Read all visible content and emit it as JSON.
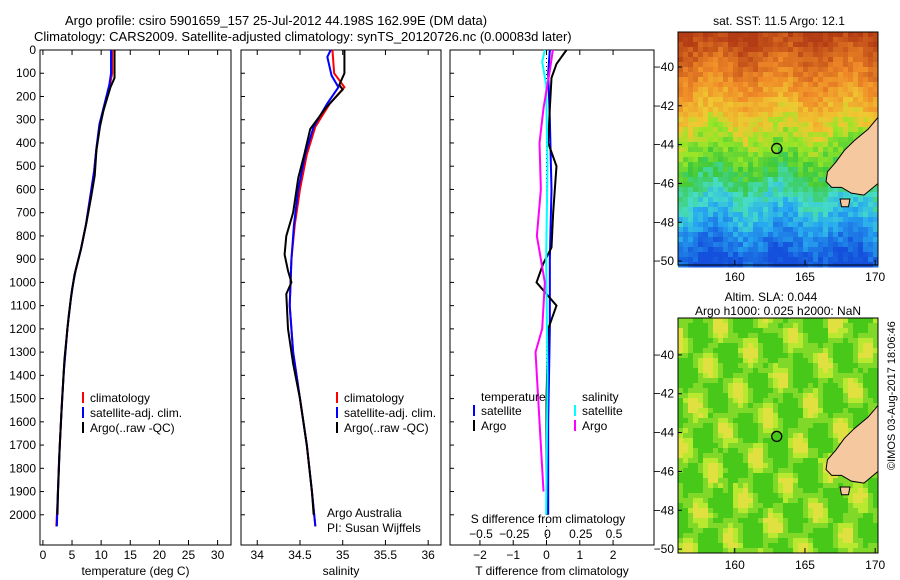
{
  "title_line1": "Argo profile: csiro 5901659_157 25-Jul-2012 44.198S 162.99E (DM data)",
  "title_line2": "Climatology: CARS2009. Satellite-adjusted climatology: synTS_20120726.nc (0.00083d later)",
  "credit": "©IMOS 03-Aug-2017 18:06:46",
  "colors": {
    "climatology": "#ff0000",
    "satellite": "#0000ff",
    "argo": "#000000",
    "s_satellite": "#00ffff",
    "s_argo": "#ff00ff",
    "land": "#f5c89f"
  },
  "chart_data": [
    {
      "type": "line",
      "name": "temperature",
      "xlabel": "temperature (deg C)",
      "ylabel": "",
      "xlim": [
        -0.5,
        32.3
      ],
      "ylim": [
        0,
        2130
      ],
      "xticks": [
        0,
        5,
        10,
        15,
        20,
        25,
        30
      ],
      "yticks": [
        0,
        100,
        200,
        300,
        400,
        500,
        600,
        700,
        800,
        900,
        1000,
        1100,
        1200,
        1300,
        1400,
        1500,
        1600,
        1700,
        1800,
        1900,
        2000
      ],
      "legend": [
        "climatology",
        "satellite-adj. clim.",
        "Argo(..raw -QC)"
      ],
      "series": [
        {
          "name": "climatology",
          "color": "#ff0000",
          "points": [
            [
              11.9,
              0
            ],
            [
              11.9,
              100
            ],
            [
              11.5,
              150
            ],
            [
              10.5,
              250
            ],
            [
              9.8,
              320
            ],
            [
              9.2,
              420
            ],
            [
              8.8,
              520
            ],
            [
              8.2,
              620
            ],
            [
              7.4,
              750
            ],
            [
              6.5,
              860
            ],
            [
              5.4,
              970
            ],
            [
              4.8,
              1070
            ],
            [
              4.2,
              1200
            ],
            [
              3.6,
              1380
            ],
            [
              3.2,
              1550
            ],
            [
              2.8,
              1750
            ],
            [
              2.5,
              1950
            ],
            [
              2.3,
              2050
            ]
          ]
        },
        {
          "name": "satellite-adj. clim.",
          "color": "#0000ff",
          "points": [
            [
              11.7,
              0
            ],
            [
              11.7,
              100
            ],
            [
              11.4,
              150
            ],
            [
              10.4,
              250
            ],
            [
              9.7,
              320
            ],
            [
              9.2,
              420
            ],
            [
              8.8,
              520
            ],
            [
              8.2,
              620
            ],
            [
              7.4,
              750
            ],
            [
              6.5,
              860
            ],
            [
              5.4,
              970
            ],
            [
              4.8,
              1070
            ],
            [
              4.2,
              1200
            ],
            [
              3.6,
              1380
            ],
            [
              3.2,
              1550
            ],
            [
              2.8,
              1750
            ],
            [
              2.5,
              1950
            ],
            [
              2.4,
              2050
            ]
          ]
        },
        {
          "name": "Argo(..raw -QC)",
          "color": "#000000",
          "points": [
            [
              12.3,
              0
            ],
            [
              12.3,
              120
            ],
            [
              11.6,
              160
            ],
            [
              10.4,
              260
            ],
            [
              9.8,
              330
            ],
            [
              9.2,
              430
            ],
            [
              8.9,
              540
            ],
            [
              8.3,
              630
            ],
            [
              7.5,
              740
            ],
            [
              6.6,
              850
            ],
            [
              5.6,
              950
            ],
            [
              5.0,
              1030
            ],
            [
              4.4,
              1150
            ],
            [
              3.7,
              1330
            ],
            [
              3.3,
              1500
            ],
            [
              2.9,
              1700
            ],
            [
              2.6,
              1900
            ],
            [
              2.5,
              2000
            ]
          ]
        }
      ]
    },
    {
      "type": "line",
      "name": "salinity",
      "xlabel": "salinity",
      "ylabel": "",
      "xlim": [
        33.81,
        36.15
      ],
      "ylim": [
        0,
        2130
      ],
      "xticks": [
        34,
        34.5,
        35,
        35.5,
        36
      ],
      "legend": [
        "climatology",
        "satellite-adj. clim.",
        "Argo(..raw -QC)"
      ],
      "annotation": [
        "Argo Australia",
        "PI: Susan Wijffels"
      ],
      "series": [
        {
          "name": "climatology",
          "color": "#ff0000",
          "points": [
            [
              34.88,
              0
            ],
            [
              34.9,
              100
            ],
            [
              35.02,
              160
            ],
            [
              34.85,
              230
            ],
            [
              34.68,
              330
            ],
            [
              34.58,
              450
            ],
            [
              34.5,
              600
            ],
            [
              34.44,
              750
            ],
            [
              34.4,
              900
            ],
            [
              34.38,
              1100
            ],
            [
              34.42,
              1300
            ],
            [
              34.5,
              1500
            ],
            [
              34.58,
              1700
            ],
            [
              34.64,
              1900
            ],
            [
              34.68,
              2050
            ]
          ]
        },
        {
          "name": "satellite-adj. clim.",
          "color": "#0000ff",
          "points": [
            [
              34.86,
              0
            ],
            [
              34.82,
              30
            ],
            [
              34.87,
              110
            ],
            [
              34.95,
              160
            ],
            [
              34.82,
              230
            ],
            [
              34.66,
              330
            ],
            [
              34.56,
              450
            ],
            [
              34.48,
              600
            ],
            [
              34.43,
              750
            ],
            [
              34.4,
              900
            ],
            [
              34.38,
              1100
            ],
            [
              34.42,
              1300
            ],
            [
              34.5,
              1500
            ],
            [
              34.58,
              1700
            ],
            [
              34.64,
              1900
            ],
            [
              34.68,
              2050
            ]
          ]
        },
        {
          "name": "Argo(..raw -QC)",
          "color": "#000000",
          "points": [
            [
              35.02,
              0
            ],
            [
              35.02,
              100
            ],
            [
              34.96,
              150
            ],
            [
              35.0,
              170
            ],
            [
              34.8,
              250
            ],
            [
              34.62,
              340
            ],
            [
              34.55,
              450
            ],
            [
              34.48,
              550
            ],
            [
              34.42,
              700
            ],
            [
              34.34,
              800
            ],
            [
              34.32,
              880
            ],
            [
              34.36,
              950
            ],
            [
              34.4,
              1000
            ],
            [
              34.34,
              1050
            ],
            [
              34.36,
              1200
            ],
            [
              34.42,
              1350
            ],
            [
              34.5,
              1500
            ],
            [
              34.58,
              1700
            ],
            [
              34.64,
              1900
            ],
            [
              34.66,
              2000
            ]
          ]
        }
      ]
    },
    {
      "type": "line",
      "name": "difference",
      "xlabel": "T difference from climatology",
      "x2label": "S difference from climatology",
      "xlim": [
        -2.9,
        3.23
      ],
      "ylim": [
        0,
        2130
      ],
      "xticks": [
        -2,
        -1,
        0,
        1,
        2
      ],
      "x2ticks": [
        -0.5,
        -0.25,
        0,
        0.25,
        0.5
      ],
      "legend_titles": [
        "temperature",
        "salinity"
      ],
      "legend": [
        "satellite",
        "Argo",
        "satellite",
        "Argo"
      ],
      "series": [
        {
          "name": "temperature satellite",
          "axis": "T",
          "color": "#0000ff",
          "points": [
            [
              0.1,
              0
            ],
            [
              0.05,
              100
            ],
            [
              0.1,
              300
            ],
            [
              0.15,
              600
            ],
            [
              0.1,
              900
            ],
            [
              0.1,
              1200
            ],
            [
              0.05,
              1600
            ],
            [
              0.05,
              2000
            ]
          ]
        },
        {
          "name": "temperature Argo",
          "axis": "T",
          "color": "#000000",
          "points": [
            [
              0.6,
              0
            ],
            [
              0.3,
              60
            ],
            [
              0.15,
              120
            ],
            [
              0.1,
              250
            ],
            [
              0.05,
              400
            ],
            [
              0.3,
              500
            ],
            [
              0.2,
              700
            ],
            [
              0.15,
              850
            ],
            [
              -0.1,
              920
            ],
            [
              -0.3,
              1000
            ],
            [
              0.3,
              1100
            ],
            [
              0.05,
              1200
            ],
            [
              0.0,
              1500
            ],
            [
              0.0,
              2000
            ]
          ]
        },
        {
          "name": "salinity satellite",
          "axis": "S",
          "color": "#00ffff",
          "points": [
            [
              -0.02,
              0
            ],
            [
              -0.04,
              50
            ],
            [
              -0.01,
              150
            ],
            [
              0.0,
              500
            ],
            [
              -0.01,
              900
            ],
            [
              0.0,
              1400
            ],
            [
              -0.01,
              2000
            ]
          ]
        },
        {
          "name": "salinity Argo",
          "axis": "S",
          "color": "#ff00ff",
          "points": [
            [
              0.04,
              0
            ],
            [
              0.02,
              80
            ],
            [
              -0.03,
              250
            ],
            [
              -0.06,
              400
            ],
            [
              -0.05,
              600
            ],
            [
              -0.08,
              800
            ],
            [
              -0.02,
              1000
            ],
            [
              -0.04,
              1200
            ],
            [
              -0.09,
              1300
            ],
            [
              -0.07,
              1500
            ],
            [
              -0.05,
              1700
            ],
            [
              -0.03,
              1900
            ]
          ]
        }
      ]
    },
    {
      "type": "heatmap",
      "name": "sst-map",
      "title": "sat. SST: 11.5 Argo: 12.1",
      "xlim": [
        155.96,
        170.2
      ],
      "ylim": [
        -50.2,
        -38.2
      ],
      "xticks": [
        160,
        165,
        170
      ],
      "yticks": [
        -40,
        -42,
        -44,
        -46,
        -48,
        -50
      ],
      "marker": [
        162.99,
        -44.198
      ]
    },
    {
      "type": "heatmap",
      "name": "sla-map",
      "title": "Altim. SLA: 0.044",
      "title2": "Argo h1000: 0.025 h2000: NaN",
      "xlim": [
        155.96,
        170.2
      ],
      "ylim": [
        -50.2,
        -38.1
      ],
      "xticks": [
        160,
        165,
        170
      ],
      "yticks": [
        -40,
        -42,
        -44,
        -46,
        -48,
        -50
      ],
      "marker": [
        162.99,
        -44.198
      ]
    }
  ]
}
